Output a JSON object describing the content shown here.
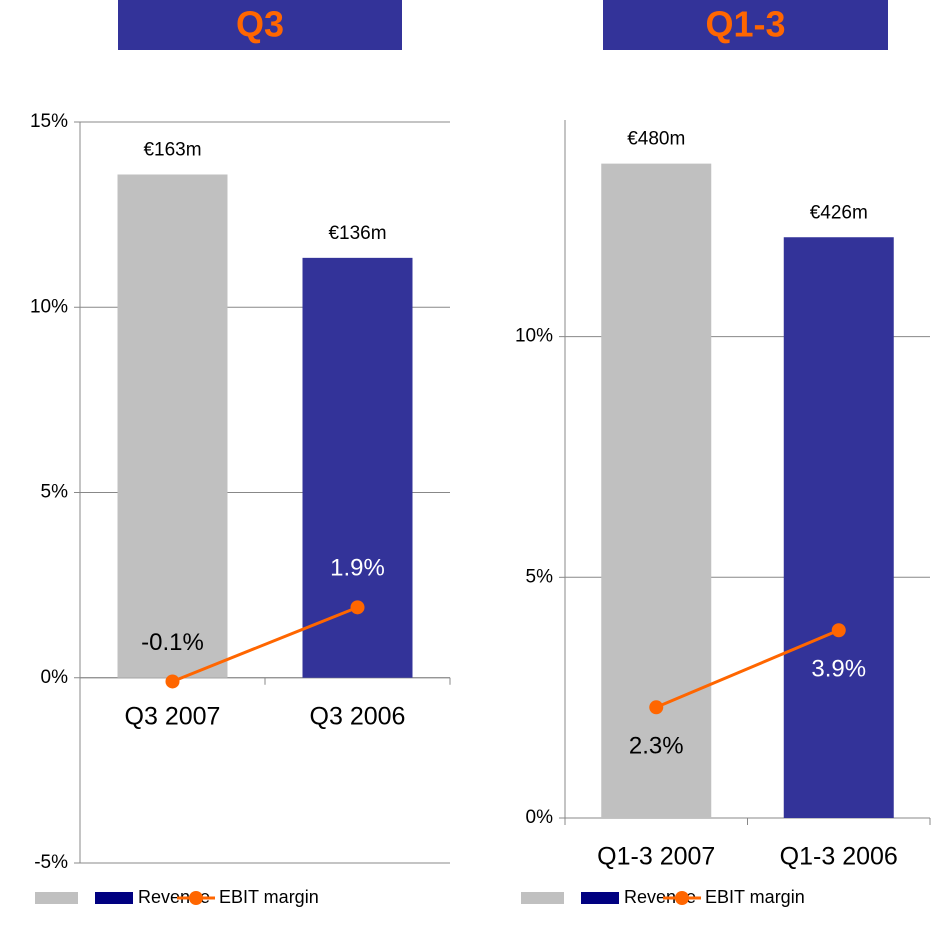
{
  "chart_data": [
    {
      "type": "bar-line",
      "header": "Q3",
      "categories": [
        "Q3 2007",
        "Q3 2006"
      ],
      "series": [
        {
          "name": "Revenue",
          "type": "bar",
          "axis": "y2",
          "colors": [
            "#c0c0c0",
            "#333399"
          ],
          "values": [
            163,
            136
          ],
          "value_labels": [
            "€163m",
            "€136m"
          ]
        },
        {
          "name": "EBIT margin",
          "type": "line",
          "color": "#ff6600",
          "values": [
            -0.1,
            1.9
          ],
          "value_labels": [
            "-0.1%",
            "1.9%"
          ]
        }
      ],
      "ylim": [
        -5,
        15
      ],
      "yticks": [
        {
          "value": -5,
          "label": "-5%"
        },
        {
          "value": 0,
          "label": "0%"
        },
        {
          "value": 5,
          "label": "5%"
        },
        {
          "value": 10,
          "label": "10%"
        },
        {
          "value": 15,
          "label": "15%"
        }
      ],
      "y2lim": [
        -60,
        180
      ],
      "grid": true
    },
    {
      "type": "bar-line",
      "header": "Q1-3",
      "categories": [
        "Q1-3 2007",
        "Q1-3 2006"
      ],
      "series": [
        {
          "name": "Revenue",
          "type": "bar",
          "axis": "y2",
          "colors": [
            "#c0c0c0",
            "#333399"
          ],
          "values": [
            480,
            426
          ],
          "value_labels": [
            "€480m",
            "€426m"
          ]
        },
        {
          "name": "EBIT margin",
          "type": "line",
          "color": "#ff6600",
          "values": [
            2.3,
            3.9
          ],
          "value_labels": [
            "2.3%",
            "3.9%"
          ]
        }
      ],
      "ylim": [
        0,
        14.5
      ],
      "yticks": [
        {
          "value": 0,
          "label": "0%"
        },
        {
          "value": 5,
          "label": "5%"
        },
        {
          "value": 10,
          "label": "10%"
        }
      ],
      "y2lim": [
        0,
        512
      ],
      "grid": true
    }
  ]
}
